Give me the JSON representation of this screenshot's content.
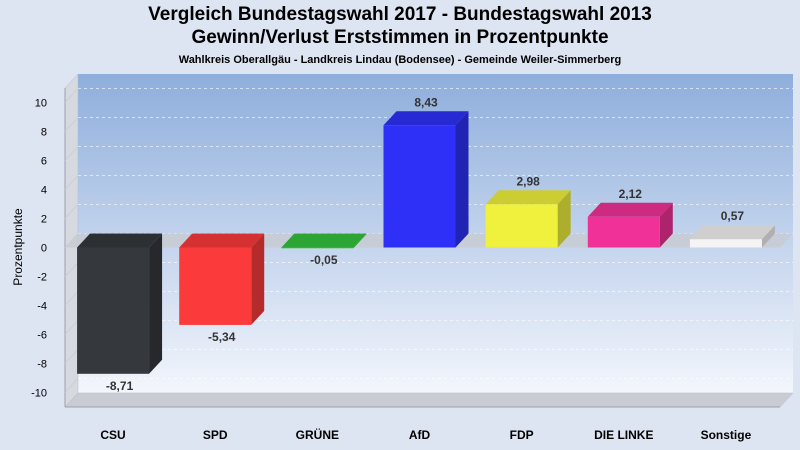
{
  "title": "Vergleich Bundestagswahl 2017 - Bundestagswahl 2013",
  "subtitle": "Gewinn/Verlust Erststimmen in Prozentpunkte",
  "caption": "Wahlkreis Oberallgäu - Landkreis Lindau (Bodensee) - Gemeinde Weiler-Simmerberg",
  "chart_data": {
    "type": "bar",
    "title": "Vergleich Bundestagswahl 2017 - Bundestagswahl 2013",
    "subtitle": "Gewinn/Verlust Erststimmen in Prozentpunkte",
    "ylabel": "Prozentpunkte",
    "xlabel": "",
    "ylim": [
      -11,
      11
    ],
    "yticks": [
      10,
      8,
      6,
      4,
      2,
      0,
      -2,
      -4,
      -6,
      -8,
      -10
    ],
    "grid": true,
    "categories": [
      "CSU",
      "SPD",
      "GRÜNE",
      "AfD",
      "FDP",
      "DIE LINKE",
      "Sonstige"
    ],
    "values": [
      -8.71,
      -5.34,
      -0.05,
      8.43,
      2.98,
      2.12,
      0.57
    ],
    "value_labels": [
      "-8,71",
      "-5,34",
      "-0,05",
      "8,43",
      "2,98",
      "2,12",
      "0,57"
    ],
    "colors": [
      "#35383c",
      "#fb3a3c",
      "#35c23d",
      "#2e30f7",
      "#f0f13c",
      "#f03298",
      "#f4f4f4"
    ]
  }
}
